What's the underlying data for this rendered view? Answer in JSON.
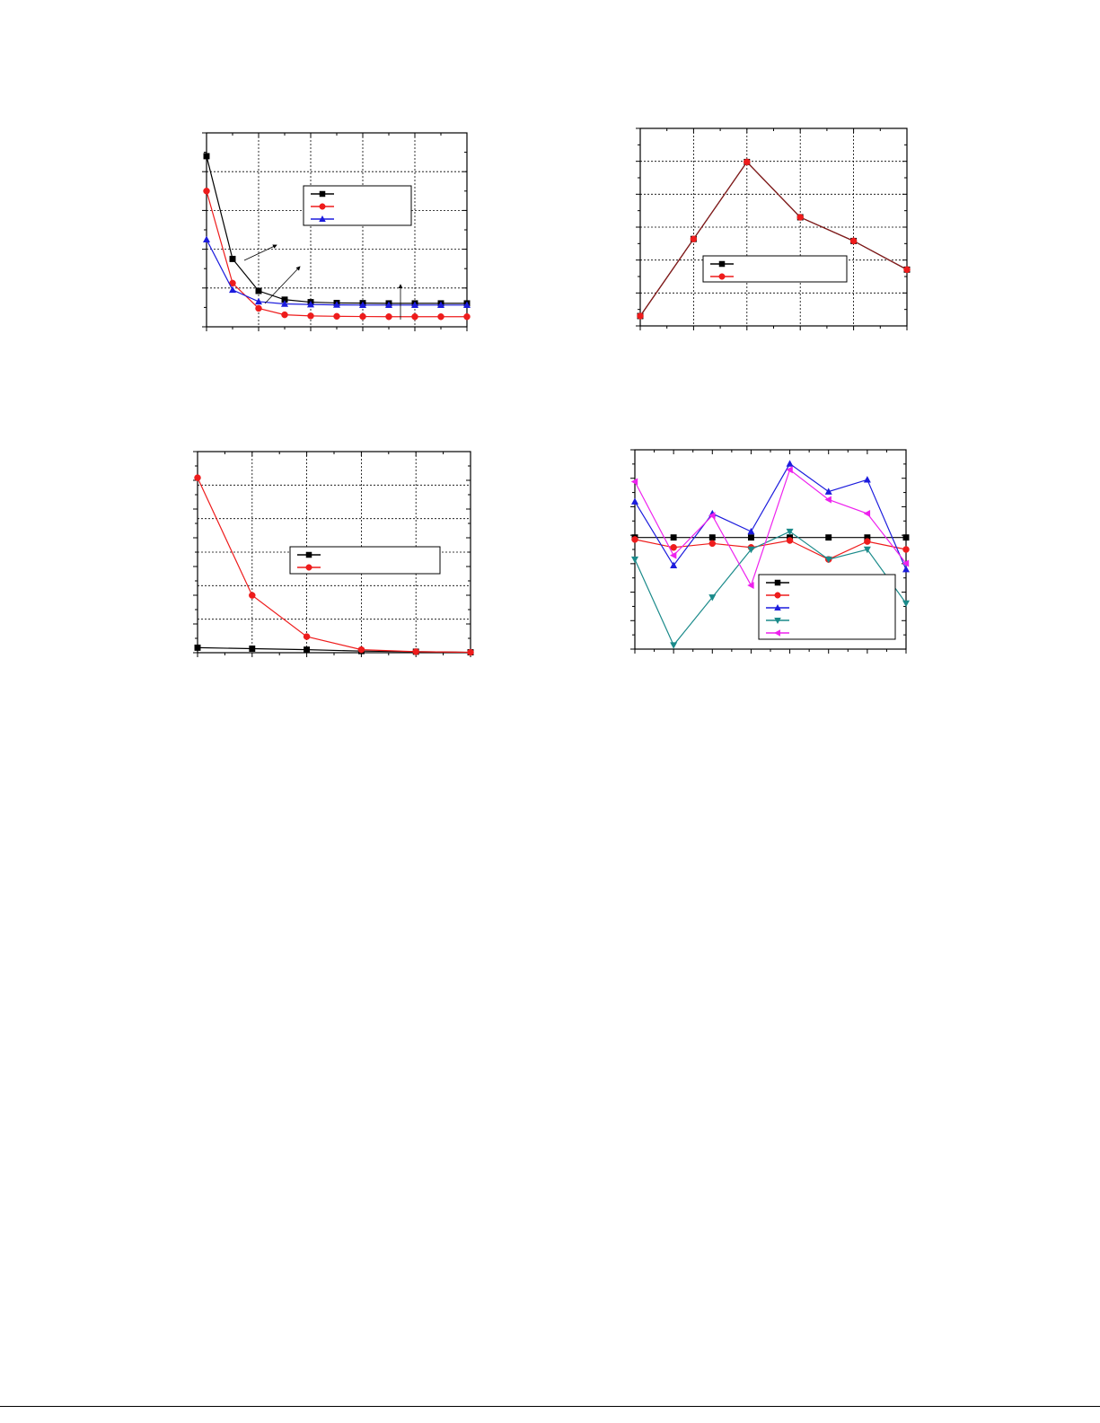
{
  "colors": {
    "black": "#000000",
    "red": "#ee1c1c",
    "blue": "#1c1cdd",
    "teal": "#1a8a8a",
    "magenta": "#ee22ee",
    "darkred": "#8b1a1a"
  },
  "chart_data": [
    {
      "type": "line",
      "grid": true,
      "legend": "upper-middle",
      "xlim": [
        0,
        10
      ],
      "ylim": [
        0,
        10
      ],
      "annotations": [
        "arrow",
        "arrow",
        "arrow"
      ],
      "series": [
        {
          "marker": "square",
          "color": "#000000",
          "x": [
            0,
            1,
            2,
            3,
            4,
            5,
            6,
            7,
            8,
            9,
            10
          ],
          "y": [
            8.8,
            3.5,
            1.85,
            1.4,
            1.27,
            1.23,
            1.22,
            1.21,
            1.21,
            1.21,
            1.21
          ]
        },
        {
          "marker": "circle",
          "color": "#ee1c1c",
          "x": [
            0,
            1,
            2,
            3,
            4,
            5,
            6,
            7,
            8,
            9,
            10
          ],
          "y": [
            7.0,
            2.25,
            0.95,
            0.62,
            0.56,
            0.54,
            0.53,
            0.52,
            0.52,
            0.52,
            0.52
          ]
        },
        {
          "marker": "triangle-up",
          "color": "#1c1cdd",
          "x": [
            0,
            1,
            2,
            3,
            4,
            5,
            6,
            7,
            8,
            9,
            10
          ],
          "y": [
            4.5,
            1.9,
            1.3,
            1.18,
            1.15,
            1.13,
            1.12,
            1.12,
            1.12,
            1.12,
            1.12
          ]
        }
      ]
    },
    {
      "type": "line",
      "grid": true,
      "legend": "lower-right",
      "xlim": [
        0,
        5
      ],
      "ylim": [
        0,
        10
      ],
      "series": [
        {
          "marker": "square",
          "color": "#000000",
          "x": [
            0,
            1,
            2,
            3,
            4,
            5
          ],
          "y": [
            0.5,
            4.4,
            8.3,
            5.5,
            4.3,
            2.85
          ]
        },
        {
          "marker": "circle",
          "color": "#ee1c1c",
          "x": [
            0,
            1,
            2,
            3,
            4,
            5
          ],
          "y": [
            0.5,
            4.4,
            8.3,
            5.5,
            4.3,
            2.85
          ]
        }
      ]
    },
    {
      "type": "line",
      "grid": true,
      "legend": "center-right",
      "xlim": [
        0,
        5
      ],
      "ylim": [
        0,
        10
      ],
      "series": [
        {
          "marker": "square",
          "color": "#000000",
          "x": [
            0,
            1,
            2,
            3,
            4,
            5
          ],
          "y": [
            0.25,
            0.2,
            0.15,
            0.08,
            0.05,
            0.02
          ]
        },
        {
          "marker": "circle",
          "color": "#ee1c1c",
          "x": [
            0,
            1,
            2,
            3,
            4,
            5
          ],
          "y": [
            8.7,
            2.85,
            0.8,
            0.15,
            0.05,
            0.02
          ]
        }
      ]
    },
    {
      "type": "line",
      "grid": false,
      "legend": "lower-right",
      "xlim": [
        0,
        7
      ],
      "ylim": [
        0,
        10
      ],
      "series": [
        {
          "marker": "square",
          "color": "#000000",
          "x": [
            0,
            1,
            2,
            3,
            4,
            5,
            6,
            7
          ],
          "y": [
            5.6,
            5.6,
            5.6,
            5.6,
            5.6,
            5.6,
            5.6,
            5.6
          ]
        },
        {
          "marker": "circle",
          "color": "#ee1c1c",
          "x": [
            0,
            1,
            2,
            3,
            4,
            5,
            6,
            7
          ],
          "y": [
            5.5,
            5.1,
            5.3,
            5.1,
            5.45,
            4.5,
            5.4,
            5.0
          ]
        },
        {
          "marker": "triangle-up",
          "color": "#1c1cdd",
          "x": [
            0,
            1,
            2,
            3,
            4,
            5,
            6,
            7
          ],
          "y": [
            7.4,
            4.2,
            6.8,
            5.9,
            9.3,
            7.9,
            8.5,
            4.0
          ]
        },
        {
          "marker": "triangle-down",
          "color": "#1a8a8a",
          "x": [
            0,
            1,
            2,
            3,
            4,
            5,
            6,
            7
          ],
          "y": [
            4.5,
            0.2,
            2.6,
            5.0,
            5.9,
            4.5,
            5.0,
            2.3
          ]
        },
        {
          "marker": "triangle-left",
          "color": "#ee22ee",
          "x": [
            0,
            1,
            2,
            3,
            4,
            5,
            6,
            7
          ],
          "y": [
            8.4,
            4.7,
            6.7,
            3.2,
            9.0,
            7.5,
            6.8,
            4.3
          ]
        }
      ]
    }
  ]
}
